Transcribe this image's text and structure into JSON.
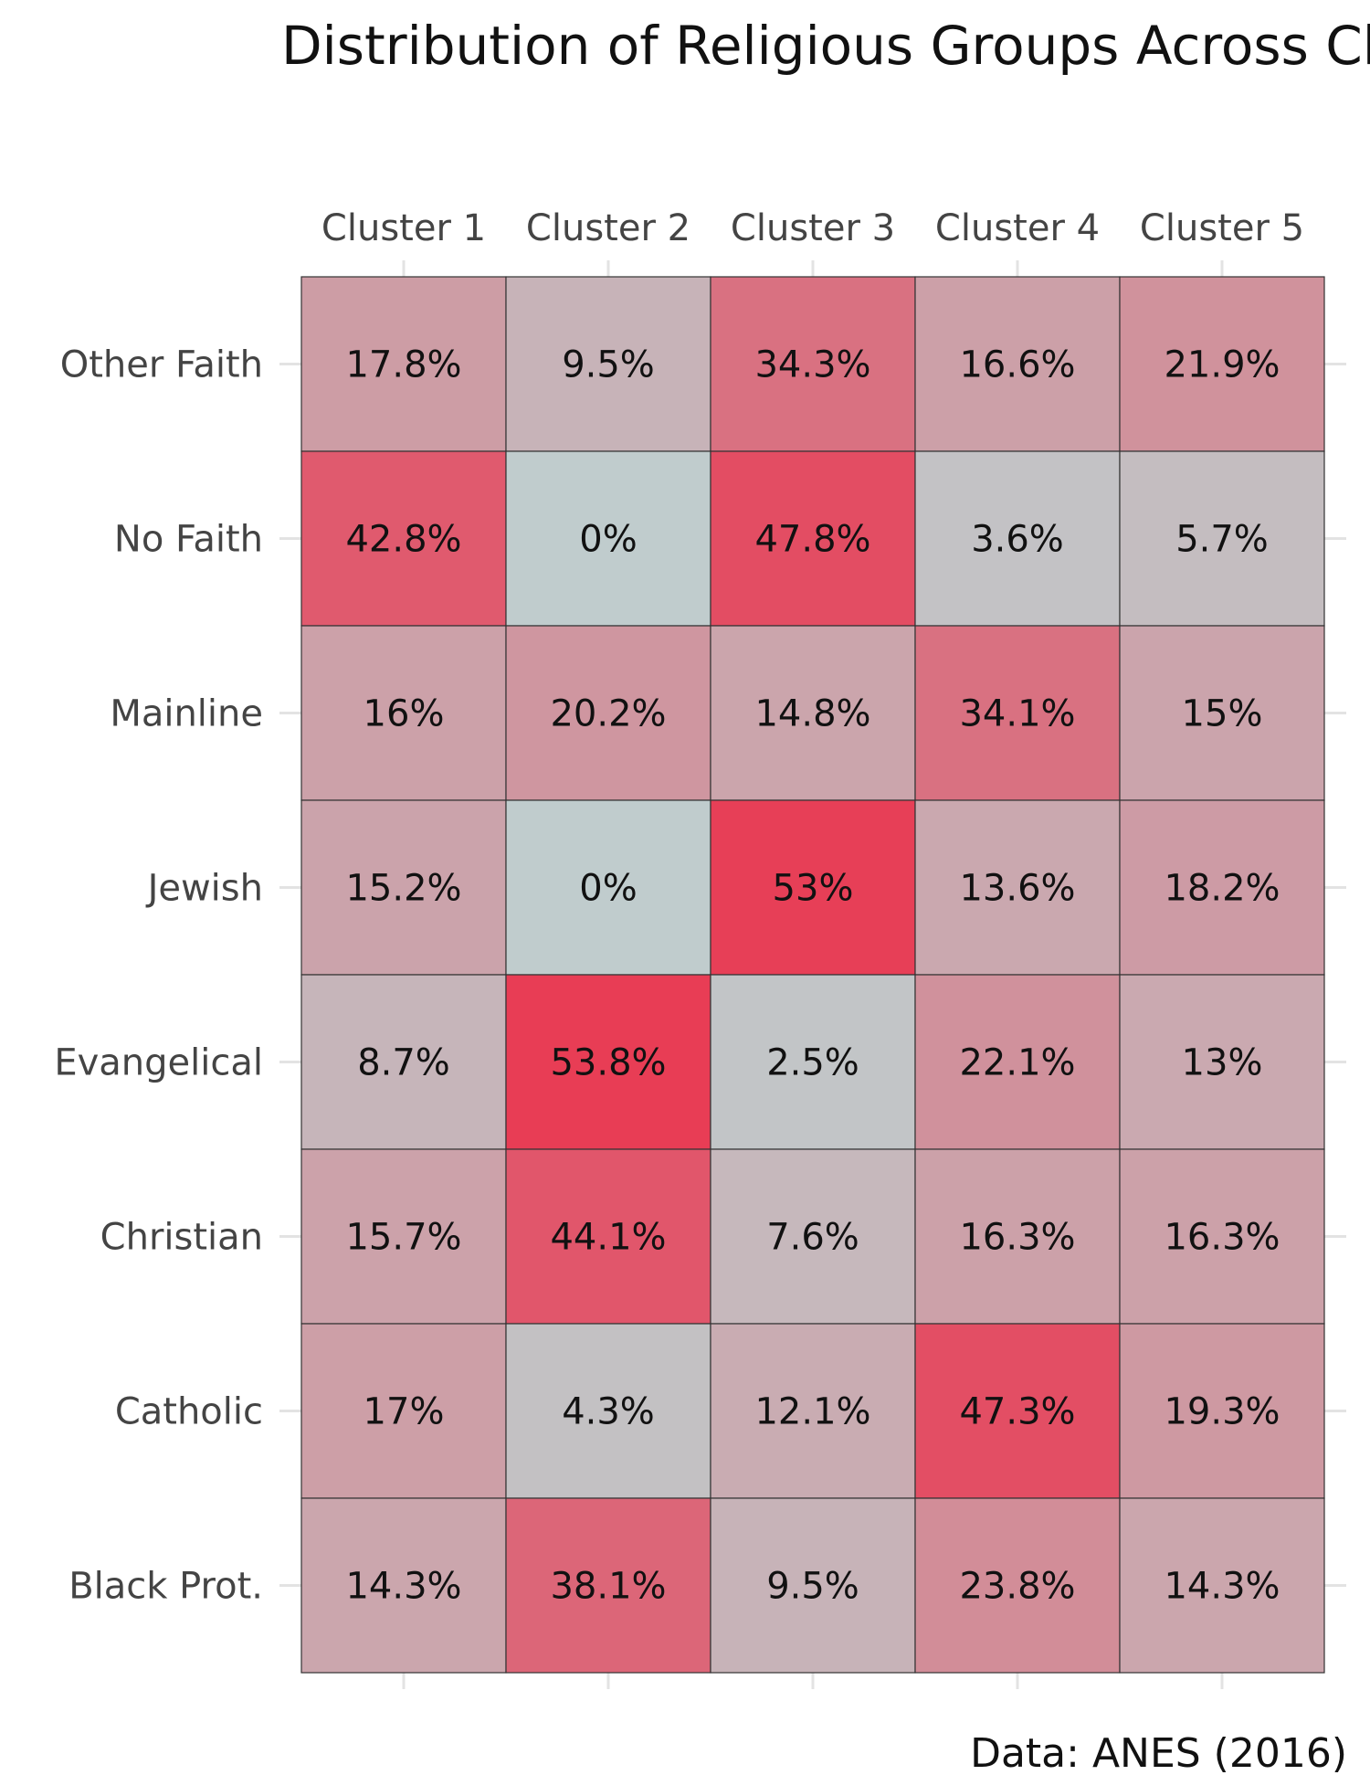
{
  "chart_data": {
    "type": "heatmap",
    "title": "Distribution of Religious Groups Across Clust",
    "caption": "Data: ANES (2016)",
    "columns": [
      "Cluster 1",
      "Cluster 2",
      "Cluster 3",
      "Cluster 4",
      "Cluster 5"
    ],
    "rows": [
      "Other Faith",
      "No Faith",
      "Mainline",
      "Jewish",
      "Evangelical",
      "Christian",
      "Catholic",
      "Black Prot."
    ],
    "values": [
      [
        17.8,
        9.5,
        34.3,
        16.6,
        21.9
      ],
      [
        42.8,
        0,
        47.8,
        3.6,
        5.7
      ],
      [
        16,
        20.2,
        14.8,
        34.1,
        15
      ],
      [
        15.2,
        0,
        53,
        13.6,
        18.2
      ],
      [
        8.7,
        53.8,
        2.5,
        22.1,
        13
      ],
      [
        15.7,
        44.1,
        7.6,
        16.3,
        16.3
      ],
      [
        17,
        4.3,
        12.1,
        47.3,
        19.3
      ],
      [
        14.3,
        38.1,
        9.5,
        23.8,
        14.3
      ]
    ],
    "labels": [
      [
        "17.8%",
        "9.5%",
        "34.3%",
        "16.6%",
        "21.9%"
      ],
      [
        "42.8%",
        "0%",
        "47.8%",
        "3.6%",
        "5.7%"
      ],
      [
        "16%",
        "20.2%",
        "14.8%",
        "34.1%",
        "15%"
      ],
      [
        "15.2%",
        "0%",
        "53%",
        "13.6%",
        "18.2%"
      ],
      [
        "8.7%",
        "53.8%",
        "2.5%",
        "22.1%",
        "13%"
      ],
      [
        "15.7%",
        "44.1%",
        "7.6%",
        "16.3%",
        "16.3%"
      ],
      [
        "17%",
        "4.3%",
        "12.1%",
        "47.3%",
        "19.3%"
      ],
      [
        "14.3%",
        "38.1%",
        "9.5%",
        "23.8%",
        "14.3%"
      ]
    ],
    "color_scale": {
      "low": "#c0cccd",
      "high": "#e83c55",
      "range": [
        0,
        54
      ]
    },
    "grid": true,
    "legend": "none"
  }
}
